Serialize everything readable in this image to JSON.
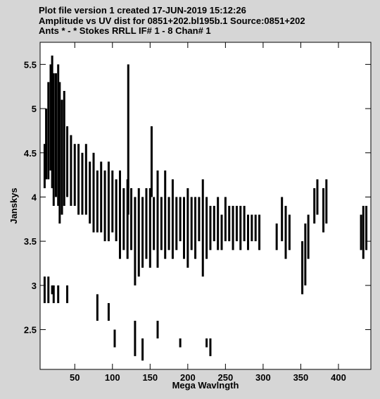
{
  "chart_data": {
    "type": "range",
    "title_lines": [
      "Plot file version 1  created 17-JUN-2019 15:12:26",
      "Amplitude vs UV dist for 0851+202.bl195b.1   Source:0851+202",
      "Ants * - *    Stokes RRLL  IF# 1 - 8  Chan# 1"
    ],
    "xlabel": "Mega Wavlngth",
    "ylabel": "Janskys",
    "color": "#000000",
    "xlim": [
      4,
      443
    ],
    "ylim": [
      2.05,
      5.75
    ],
    "xticks": [
      50,
      100,
      150,
      200,
      250,
      300,
      350,
      400
    ],
    "yticks": [
      2.5,
      3.0,
      3.5,
      4.0,
      4.5,
      5.0,
      5.5
    ],
    "x": [
      10,
      12,
      15,
      18,
      20,
      22,
      25,
      28,
      30,
      33,
      36,
      40,
      45,
      50,
      55,
      60,
      65,
      70,
      75,
      80,
      85,
      90,
      95,
      100,
      105,
      110,
      115,
      120,
      121,
      125,
      130,
      135,
      140,
      145,
      150,
      152,
      155,
      160,
      165,
      170,
      175,
      180,
      185,
      190,
      195,
      200,
      205,
      210,
      215,
      220,
      225,
      230,
      235,
      240,
      245,
      250,
      255,
      260,
      265,
      270,
      275,
      280,
      285,
      290,
      295,
      318,
      325,
      330,
      335,
      352,
      356,
      360,
      368,
      372,
      380,
      384,
      430,
      433,
      437,
      10,
      15,
      20,
      22,
      28,
      40,
      80,
      95,
      103,
      130,
      140,
      160,
      190,
      225,
      230
    ],
    "lows": [
      4.1,
      4.2,
      4.2,
      4.3,
      4.1,
      3.9,
      4.0,
      3.9,
      3.7,
      3.8,
      3.9,
      4.0,
      3.9,
      3.9,
      3.8,
      3.8,
      3.8,
      3.7,
      3.6,
      3.6,
      3.6,
      3.5,
      3.5,
      3.6,
      3.5,
      3.3,
      3.4,
      3.3,
      3.8,
      3.4,
      3.0,
      3.1,
      3.2,
      3.3,
      3.2,
      4.0,
      3.4,
      3.2,
      3.4,
      3.3,
      3.4,
      3.3,
      3.4,
      3.5,
      3.3,
      3.2,
      3.4,
      3.3,
      3.5,
      3.1,
      3.3,
      3.4,
      3.5,
      3.4,
      3.4,
      3.5,
      3.5,
      3.4,
      3.5,
      3.4,
      3.5,
      3.4,
      3.5,
      3.5,
      3.4,
      3.4,
      3.5,
      3.3,
      3.4,
      2.9,
      3.0,
      3.3,
      3.7,
      3.8,
      3.6,
      3.7,
      3.4,
      3.3,
      3.4,
      2.8,
      2.8,
      2.9,
      2.8,
      2.8,
      2.8,
      2.6,
      2.6,
      2.3,
      2.2,
      2.15,
      2.4,
      2.3,
      2.3,
      2.2
    ],
    "highs": [
      4.6,
      5.0,
      5.3,
      5.5,
      5.6,
      5.4,
      5.4,
      5.5,
      5.3,
      5.1,
      5.2,
      4.8,
      4.7,
      4.6,
      4.6,
      4.5,
      4.6,
      4.4,
      4.5,
      4.3,
      4.4,
      4.3,
      4.4,
      4.3,
      4.2,
      4.3,
      4.1,
      4.2,
      5.5,
      4.1,
      4.0,
      4.1,
      4.0,
      4.1,
      4.1,
      4.8,
      4.0,
      4.3,
      4.0,
      4.3,
      4.0,
      4.2,
      4.0,
      4.0,
      4.0,
      4.1,
      4.0,
      4.0,
      4.0,
      4.2,
      4.0,
      3.9,
      3.9,
      4.0,
      3.8,
      4.0,
      3.9,
      3.9,
      3.9,
      3.9,
      3.9,
      3.8,
      3.8,
      3.8,
      3.8,
      3.7,
      4.0,
      3.9,
      3.8,
      3.5,
      3.7,
      3.8,
      4.1,
      4.2,
      4.1,
      4.2,
      3.8,
      3.9,
      3.9,
      3.1,
      3.1,
      3.0,
      3.0,
      3.0,
      3.0,
      2.9,
      2.8,
      2.5,
      2.6,
      2.4,
      2.6,
      2.4,
      2.4,
      2.4
    ]
  }
}
